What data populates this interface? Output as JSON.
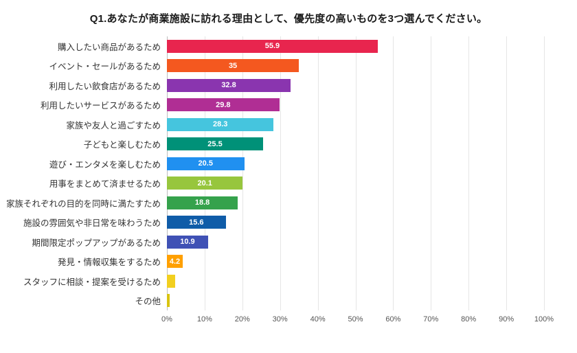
{
  "chart_data": {
    "type": "bar",
    "orientation": "horizontal",
    "title": "Q1.あなたが商業施設に訪れる理由として、優先度の高いものを3つ選んでください。",
    "categories": [
      "購入したい商品があるため",
      "イベント・セールがあるため",
      "利用したい飲食店があるため",
      "利用したいサービスがあるため",
      "家族や友人と過ごすため",
      "子どもと楽しむため",
      "遊び・エンタメを楽しむため",
      "用事をまとめて済ませるため",
      "家族それぞれの目的を同時に満たすため",
      "施設の雰囲気や非日常を味わうため",
      "期間限定ポップアップがあるため",
      "発見・情報収集をするため",
      "スタッフに相談・提案を受けるため",
      "その他"
    ],
    "values": [
      55.9,
      35,
      32.8,
      29.8,
      28.3,
      25.5,
      20.5,
      20.1,
      18.8,
      15.6,
      10.9,
      4.2,
      2.1,
      0.7
    ],
    "value_labels": [
      "55.9",
      "35",
      "32.8",
      "29.8",
      "28.3",
      "25.5",
      "20.5",
      "20.1",
      "18.8",
      "15.6",
      "10.9",
      "4.2",
      "",
      ""
    ],
    "colors": [
      "#e8254e",
      "#f4581f",
      "#8a35af",
      "#b02e94",
      "#45c5de",
      "#009178",
      "#2090f0",
      "#97c63d",
      "#35a24c",
      "#0f5ca8",
      "#3f51b5",
      "#ffa000",
      "#f2cf1f",
      "#d9c410"
    ],
    "xlim": [
      0,
      100
    ],
    "x_ticks": [
      "0%",
      "10%",
      "20%",
      "30%",
      "40%",
      "50%",
      "60%",
      "70%",
      "80%",
      "90%",
      "100%"
    ],
    "grid": true,
    "legend": false,
    "value_label_color": "#ffffff"
  }
}
